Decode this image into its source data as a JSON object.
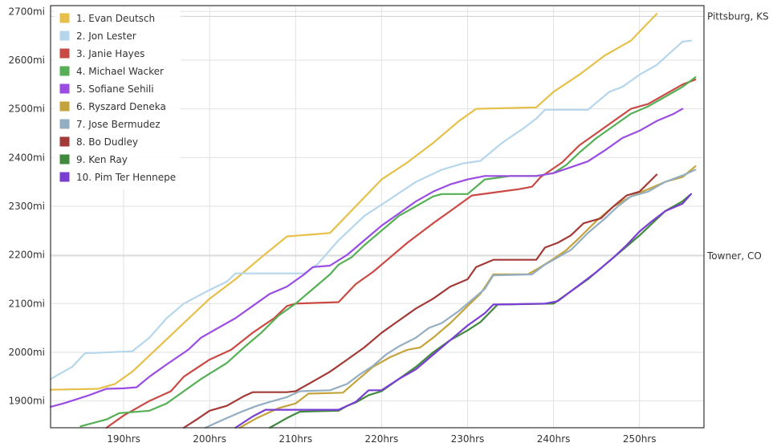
{
  "chart_data": {
    "type": "line",
    "title": "",
    "xlabel": "",
    "ylabel": "",
    "xlim": [
      181.5,
      257.5
    ],
    "ylim": [
      1845,
      2712
    ],
    "grid": true,
    "legend_position": "top-left",
    "x_ticks": [
      190,
      200,
      210,
      220,
      230,
      240,
      250
    ],
    "x_tick_labels": [
      "190hrs",
      "200hrs",
      "210hrs",
      "220hrs",
      "230hrs",
      "240hrs",
      "250hrs"
    ],
    "y_ticks": [
      1900,
      2000,
      2100,
      2200,
      2300,
      2400,
      2500,
      2600,
      2700
    ],
    "y_tick_labels": [
      "1900mi",
      "2000mi",
      "2100mi",
      "2200mi",
      "2300mi",
      "2400mi",
      "2500mi",
      "2600mi",
      "2700mi"
    ],
    "reference_lines": [
      {
        "label": "Pittsburg, KS",
        "y": 2690
      },
      {
        "label": "Towner, CO",
        "y": 2198
      }
    ],
    "series": [
      {
        "name": "1. Evan Deutsch",
        "color": "#e6c04a",
        "points": [
          [
            181.5,
            1923
          ],
          [
            187,
            1925
          ],
          [
            189,
            1935
          ],
          [
            191,
            1960
          ],
          [
            194,
            2010
          ],
          [
            197,
            2060
          ],
          [
            200,
            2110
          ],
          [
            203,
            2150
          ],
          [
            206,
            2195
          ],
          [
            209,
            2238
          ],
          [
            212,
            2242
          ],
          [
            214,
            2245
          ],
          [
            217,
            2300
          ],
          [
            220,
            2355
          ],
          [
            223,
            2390
          ],
          [
            226,
            2430
          ],
          [
            229,
            2475
          ],
          [
            231,
            2500
          ],
          [
            238,
            2503
          ],
          [
            240,
            2535
          ],
          [
            243,
            2570
          ],
          [
            246,
            2610
          ],
          [
            249,
            2640
          ],
          [
            252,
            2695
          ]
        ]
      },
      {
        "name": "2. Jon Lester",
        "color": "#b5d6ec",
        "points": [
          [
            181.5,
            1945
          ],
          [
            184,
            1970
          ],
          [
            185.5,
            1998
          ],
          [
            191,
            2002
          ],
          [
            193,
            2030
          ],
          [
            195,
            2070
          ],
          [
            197,
            2100
          ],
          [
            200,
            2128
          ],
          [
            202,
            2145
          ],
          [
            203,
            2162
          ],
          [
            211,
            2162
          ],
          [
            212.5,
            2180
          ],
          [
            215,
            2230
          ],
          [
            218,
            2280
          ],
          [
            221,
            2315
          ],
          [
            224,
            2350
          ],
          [
            227,
            2375
          ],
          [
            229.5,
            2388
          ],
          [
            231.5,
            2393
          ],
          [
            234,
            2430
          ],
          [
            236.5,
            2460
          ],
          [
            238,
            2480
          ],
          [
            239,
            2498
          ],
          [
            244,
            2498
          ],
          [
            246.5,
            2535
          ],
          [
            248,
            2545
          ],
          [
            250,
            2570
          ],
          [
            252,
            2590
          ],
          [
            254,
            2622
          ],
          [
            255,
            2638
          ],
          [
            256,
            2640
          ]
        ]
      },
      {
        "name": "3. Janie Hayes",
        "color": "#c94a44",
        "points": [
          [
            188,
            1845
          ],
          [
            190,
            1870
          ],
          [
            193,
            1900
          ],
          [
            195.5,
            1920
          ],
          [
            197,
            1950
          ],
          [
            200,
            1985
          ],
          [
            202.5,
            2005
          ],
          [
            205,
            2040
          ],
          [
            207.5,
            2070
          ],
          [
            209,
            2095
          ],
          [
            210,
            2100
          ],
          [
            215,
            2103
          ],
          [
            217,
            2140
          ],
          [
            219,
            2165
          ],
          [
            221,
            2195
          ],
          [
            223,
            2225
          ],
          [
            226,
            2265
          ],
          [
            228,
            2290
          ],
          [
            230.5,
            2322
          ],
          [
            236,
            2335
          ],
          [
            237.5,
            2340
          ],
          [
            238.5,
            2360
          ],
          [
            241,
            2390
          ],
          [
            243,
            2425
          ],
          [
            245,
            2450
          ],
          [
            247,
            2475
          ],
          [
            249,
            2500
          ],
          [
            251,
            2510
          ],
          [
            253,
            2530
          ],
          [
            255,
            2550
          ],
          [
            256.5,
            2560
          ]
        ]
      },
      {
        "name": "4. Michael Wacker",
        "color": "#55b055",
        "points": [
          [
            185,
            1848
          ],
          [
            188,
            1862
          ],
          [
            189.5,
            1875
          ],
          [
            193,
            1880
          ],
          [
            195,
            1895
          ],
          [
            197,
            1920
          ],
          [
            199,
            1945
          ],
          [
            202,
            1978
          ],
          [
            204,
            2010
          ],
          [
            206,
            2040
          ],
          [
            208,
            2075
          ],
          [
            210,
            2100
          ],
          [
            212,
            2130
          ],
          [
            214,
            2160
          ],
          [
            215,
            2180
          ],
          [
            216.5,
            2195
          ],
          [
            218,
            2220
          ],
          [
            220,
            2250
          ],
          [
            222,
            2280
          ],
          [
            224,
            2300
          ],
          [
            226,
            2320
          ],
          [
            227,
            2325
          ],
          [
            230,
            2325
          ],
          [
            232,
            2355
          ],
          [
            235,
            2362
          ],
          [
            238,
            2362
          ],
          [
            240,
            2368
          ],
          [
            241.5,
            2385
          ],
          [
            243,
            2410
          ],
          [
            245,
            2440
          ],
          [
            247,
            2465
          ],
          [
            249,
            2490
          ],
          [
            251,
            2505
          ],
          [
            253,
            2525
          ],
          [
            255,
            2545
          ],
          [
            256.5,
            2565
          ]
        ]
      },
      {
        "name": "5. Sofiane Sehili",
        "color": "#9a4ce3",
        "points": [
          [
            181.5,
            1888
          ],
          [
            183,
            1895
          ],
          [
            186,
            1912
          ],
          [
            188,
            1925
          ],
          [
            190,
            1926
          ],
          [
            191.5,
            1928
          ],
          [
            193,
            1950
          ],
          [
            195,
            1975
          ],
          [
            197.5,
            2005
          ],
          [
            199,
            2030
          ],
          [
            201,
            2050
          ],
          [
            203,
            2070
          ],
          [
            205,
            2095
          ],
          [
            207,
            2120
          ],
          [
            209,
            2135
          ],
          [
            211,
            2160
          ],
          [
            212,
            2175
          ],
          [
            214,
            2178
          ],
          [
            216,
            2200
          ],
          [
            218,
            2230
          ],
          [
            220,
            2260
          ],
          [
            222,
            2285
          ],
          [
            224,
            2310
          ],
          [
            226,
            2330
          ],
          [
            228,
            2345
          ],
          [
            230,
            2355
          ],
          [
            232,
            2362
          ],
          [
            238,
            2362
          ],
          [
            240,
            2368
          ],
          [
            242,
            2380
          ],
          [
            244,
            2392
          ],
          [
            246,
            2415
          ],
          [
            248,
            2440
          ],
          [
            250,
            2455
          ],
          [
            252,
            2475
          ],
          [
            254,
            2490
          ],
          [
            255,
            2500
          ]
        ]
      },
      {
        "name": "6. Ryszard Deneka",
        "color": "#c4a33a",
        "points": [
          [
            203.5,
            1845
          ],
          [
            205.5,
            1865
          ],
          [
            208,
            1885
          ],
          [
            210,
            1895
          ],
          [
            211.5,
            1915
          ],
          [
            215.5,
            1917
          ],
          [
            217,
            1940
          ],
          [
            219,
            1970
          ],
          [
            221,
            1990
          ],
          [
            223,
            2005
          ],
          [
            224.5,
            2010
          ],
          [
            226,
            2030
          ],
          [
            228,
            2060
          ],
          [
            230,
            2095
          ],
          [
            231.5,
            2120
          ],
          [
            233,
            2160
          ],
          [
            237,
            2160
          ],
          [
            238.5,
            2175
          ],
          [
            240,
            2192
          ],
          [
            241.5,
            2210
          ],
          [
            243,
            2235
          ],
          [
            245,
            2270
          ],
          [
            247,
            2300
          ],
          [
            249,
            2320
          ],
          [
            251,
            2335
          ],
          [
            253,
            2350
          ],
          [
            255,
            2360
          ],
          [
            256.5,
            2382
          ]
        ]
      },
      {
        "name": "7. Jose Bermudez",
        "color": "#93adc2",
        "points": [
          [
            199.5,
            1845
          ],
          [
            202,
            1865
          ],
          [
            204,
            1880
          ],
          [
            205.5,
            1890
          ],
          [
            207,
            1898
          ],
          [
            209,
            1908
          ],
          [
            210.5,
            1920
          ],
          [
            214,
            1922
          ],
          [
            216,
            1935
          ],
          [
            217.5,
            1955
          ],
          [
            219,
            1972
          ],
          [
            220.5,
            1995
          ],
          [
            222,
            2012
          ],
          [
            224,
            2030
          ],
          [
            225.5,
            2050
          ],
          [
            227,
            2060
          ],
          [
            229,
            2085
          ],
          [
            230,
            2100
          ],
          [
            232,
            2130
          ],
          [
            233,
            2158
          ],
          [
            237.5,
            2160
          ],
          [
            239,
            2180
          ],
          [
            240.5,
            2195
          ],
          [
            242,
            2210
          ],
          [
            244,
            2245
          ],
          [
            246,
            2275
          ],
          [
            247.5,
            2300
          ],
          [
            249,
            2320
          ],
          [
            251,
            2330
          ],
          [
            253,
            2350
          ],
          [
            255,
            2363
          ],
          [
            256.5,
            2375
          ]
        ]
      },
      {
        "name": "8. Bo Dudley",
        "color": "#a33a37",
        "points": [
          [
            197,
            1845
          ],
          [
            198.5,
            1862
          ],
          [
            200,
            1880
          ],
          [
            202,
            1890
          ],
          [
            204,
            1910
          ],
          [
            205,
            1918
          ],
          [
            209,
            1918
          ],
          [
            210,
            1920
          ],
          [
            212,
            1940
          ],
          [
            214,
            1960
          ],
          [
            216,
            1985
          ],
          [
            218,
            2010
          ],
          [
            220,
            2040
          ],
          [
            222,
            2065
          ],
          [
            224,
            2090
          ],
          [
            226,
            2110
          ],
          [
            228,
            2135
          ],
          [
            230,
            2150
          ],
          [
            231,
            2175
          ],
          [
            233,
            2190
          ],
          [
            238,
            2190
          ],
          [
            239,
            2215
          ],
          [
            240.5,
            2225
          ],
          [
            242,
            2240
          ],
          [
            243.5,
            2265
          ],
          [
            245.5,
            2275
          ],
          [
            247,
            2300
          ],
          [
            248.5,
            2322
          ],
          [
            250,
            2330
          ],
          [
            252,
            2365
          ]
        ]
      },
      {
        "name": "9. Ken Ray",
        "color": "#3f8a3d",
        "points": [
          [
            207,
            1845
          ],
          [
            209,
            1865
          ],
          [
            210.5,
            1878
          ],
          [
            215,
            1880
          ],
          [
            216,
            1890
          ],
          [
            217,
            1897
          ],
          [
            218.5,
            1912
          ],
          [
            220,
            1920
          ],
          [
            222,
            1945
          ],
          [
            224,
            1970
          ],
          [
            226,
            2000
          ],
          [
            228,
            2025
          ],
          [
            230,
            2045
          ],
          [
            231.5,
            2062
          ],
          [
            232.5,
            2080
          ],
          [
            233.5,
            2098
          ],
          [
            240,
            2100
          ],
          [
            242,
            2125
          ],
          [
            244,
            2150
          ],
          [
            246,
            2180
          ],
          [
            248,
            2210
          ],
          [
            250,
            2240
          ],
          [
            251.5,
            2265
          ],
          [
            253,
            2290
          ],
          [
            255,
            2310
          ],
          [
            256,
            2325
          ]
        ]
      },
      {
        "name": "10. Pim Ter Hennepe",
        "color": "#7a3dd3",
        "points": [
          [
            203,
            1845
          ],
          [
            205,
            1868
          ],
          [
            206.5,
            1882
          ],
          [
            215,
            1882
          ],
          [
            216,
            1890
          ],
          [
            217,
            1898
          ],
          [
            218.5,
            1922
          ],
          [
            220,
            1922
          ],
          [
            222,
            1945
          ],
          [
            224,
            1965
          ],
          [
            226,
            1995
          ],
          [
            228,
            2025
          ],
          [
            230,
            2055
          ],
          [
            232,
            2080
          ],
          [
            233,
            2098
          ],
          [
            239,
            2100
          ],
          [
            240.5,
            2105
          ],
          [
            242,
            2125
          ],
          [
            243.5,
            2145
          ],
          [
            245,
            2165
          ],
          [
            247,
            2195
          ],
          [
            248.5,
            2220
          ],
          [
            250,
            2248
          ],
          [
            251.5,
            2270
          ],
          [
            253,
            2290
          ],
          [
            255,
            2305
          ],
          [
            256,
            2325
          ]
        ]
      }
    ]
  }
}
